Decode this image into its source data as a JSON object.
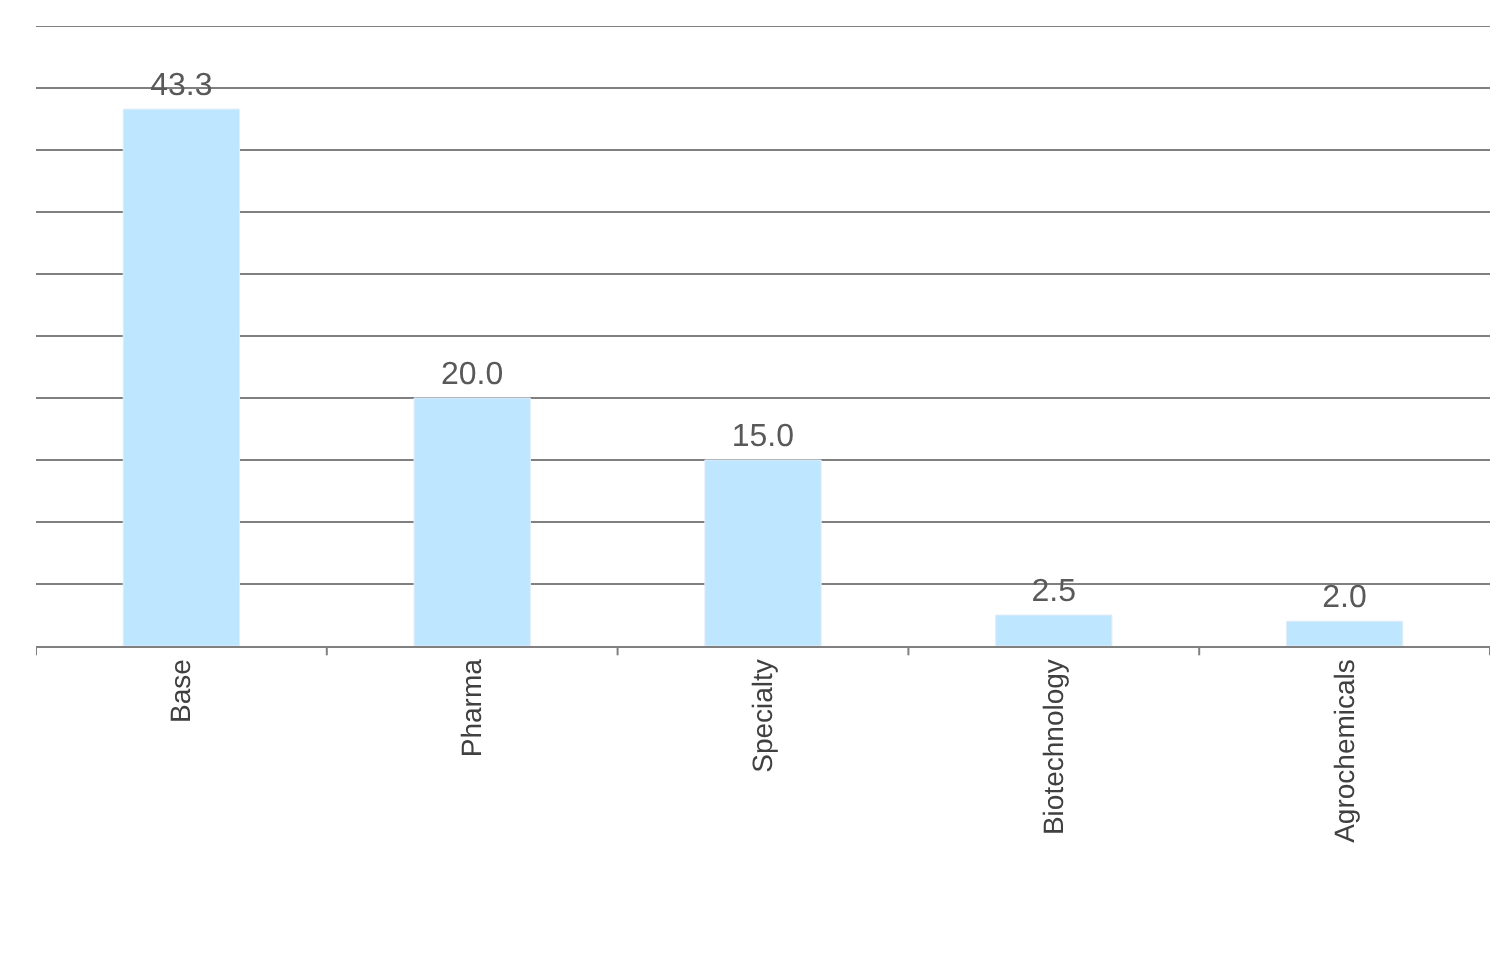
{
  "chart_data": {
    "type": "bar",
    "categories": [
      "Base",
      "Pharma",
      "Specialty",
      "Biotechnology",
      "Agrochemicals"
    ],
    "values": [
      43.3,
      20.0,
      15.0,
      2.5,
      2.0
    ],
    "color": "#bfe6ff",
    "value_labels": [
      "43.3",
      "20.0",
      "15.0",
      "2.5",
      "2.0"
    ],
    "ylim": [
      0,
      50
    ],
    "yticks": [
      0,
      5,
      10,
      15,
      20,
      25,
      30,
      35,
      40,
      45,
      50
    ],
    "grid": "y",
    "tick_labels": "x",
    "legend": false
  }
}
